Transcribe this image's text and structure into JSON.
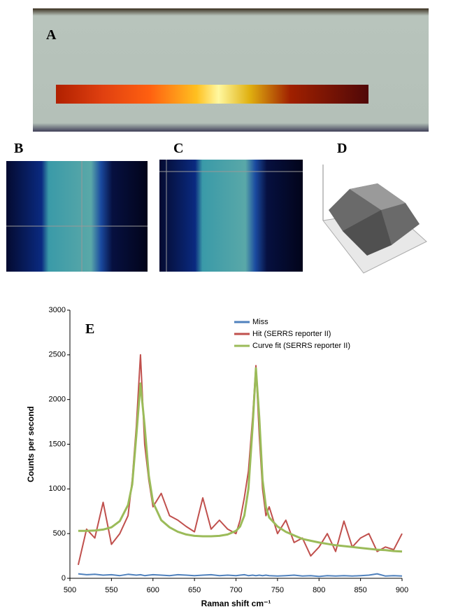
{
  "panel_labels": [
    "A",
    "B",
    "C",
    "D"
  ],
  "chart_data": {
    "type": "line",
    "annotation": "E",
    "x_label": "Raman shift cm⁻¹",
    "y_label": "Counts per second",
    "x": [
      510,
      520,
      530,
      540,
      550,
      560,
      570,
      575,
      580,
      585,
      590,
      595,
      600,
      610,
      620,
      630,
      640,
      650,
      660,
      670,
      680,
      690,
      700,
      705,
      710,
      715,
      720,
      724,
      728,
      732,
      736,
      740,
      750,
      760,
      770,
      780,
      790,
      800,
      810,
      820,
      830,
      840,
      850,
      860,
      870,
      880,
      890,
      900
    ],
    "series": [
      {
        "name": "Miss",
        "color": "#4f81bd",
        "values": [
          50,
          40,
          45,
          35,
          40,
          30,
          45,
          40,
          35,
          40,
          30,
          35,
          40,
          35,
          30,
          40,
          35,
          30,
          35,
          40,
          30,
          35,
          30,
          35,
          40,
          30,
          35,
          30,
          35,
          30,
          35,
          30,
          25,
          30,
          35,
          25,
          30,
          20,
          30,
          25,
          30,
          25,
          30,
          35,
          50,
          25,
          30,
          25
        ]
      },
      {
        "name": "Hit (SERRS reporter II)",
        "color": "#c0504d",
        "values": [
          150,
          550,
          450,
          850,
          380,
          500,
          700,
          1100,
          1700,
          2500,
          1500,
          1100,
          800,
          950,
          700,
          650,
          580,
          520,
          900,
          550,
          650,
          550,
          500,
          650,
          900,
          1200,
          1800,
          2380,
          1600,
          1000,
          700,
          800,
          500,
          650,
          400,
          450,
          250,
          350,
          500,
          300,
          640,
          350,
          450,
          500,
          300,
          350,
          320,
          500
        ]
      },
      {
        "name": "Curve fit (SERRS reporter II)",
        "color": "#9bbb59",
        "values": [
          530,
          530,
          535,
          545,
          570,
          640,
          820,
          1050,
          1600,
          2180,
          1700,
          1150,
          850,
          650,
          570,
          520,
          490,
          475,
          470,
          470,
          475,
          490,
          530,
          580,
          700,
          1000,
          1700,
          2350,
          1800,
          1100,
          800,
          680,
          580,
          520,
          480,
          440,
          420,
          400,
          385,
          370,
          360,
          350,
          340,
          330,
          320,
          315,
          305,
          300
        ]
      }
    ],
    "xlim": [
      500,
      900
    ],
    "xticks": [
      500,
      550,
      600,
      650,
      700,
      750,
      800,
      850,
      900
    ],
    "ylim": [
      0,
      3000
    ],
    "yticks": [
      0,
      500,
      1000,
      1500,
      2000,
      2500,
      3000
    ],
    "legend": "upper right"
  }
}
